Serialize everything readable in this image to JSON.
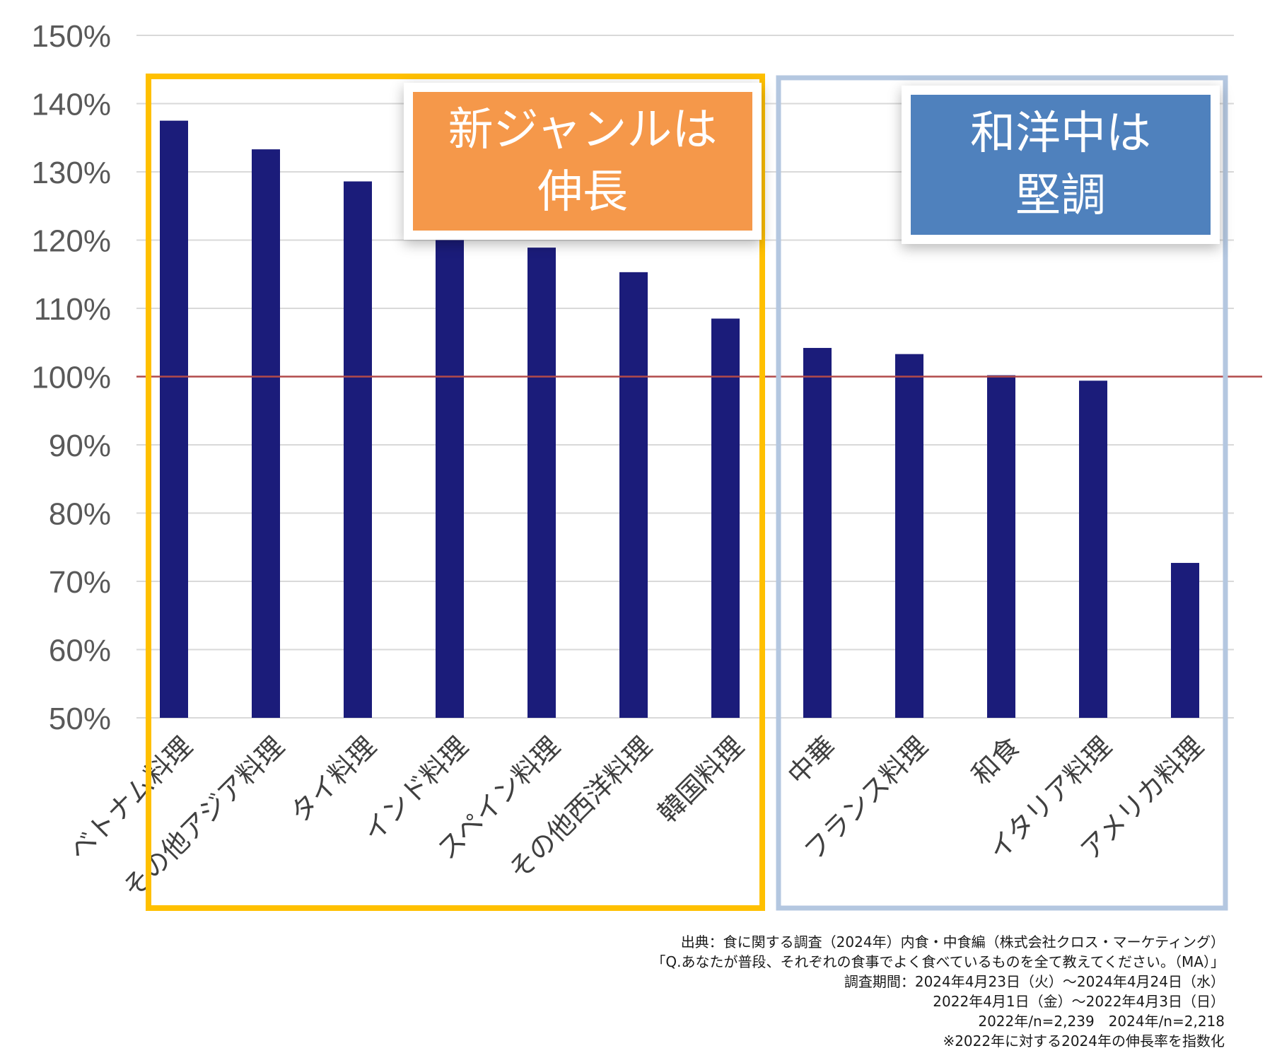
{
  "chart_data": {
    "type": "bar",
    "categories": [
      "ベトナム料理",
      "その他アジア料理",
      "タイ料理",
      "インド料理",
      "スペイン料理",
      "その他西洋料理",
      "韓国料理",
      "中華",
      "フランス料理",
      "和食",
      "イタリア料理",
      "アメリカ料理"
    ],
    "values": [
      137.5,
      133.3,
      128.6,
      120.0,
      118.9,
      115.3,
      108.5,
      104.2,
      103.3,
      100.2,
      99.4,
      72.7
    ],
    "yticks": [
      "50%",
      "60%",
      "70%",
      "80%",
      "90%",
      "100%",
      "110%",
      "120%",
      "130%",
      "140%",
      "150%"
    ],
    "ylim": [
      50,
      150
    ],
    "reference_line": 100,
    "grid": true,
    "groups": [
      {
        "label": "新ジャンルは\n伸長",
        "first": 0,
        "last": 6,
        "border_color": "#FFC000",
        "label_bg": "#F5984A"
      },
      {
        "label": "和洋中は\n堅調",
        "first": 7,
        "last": 11,
        "border_color": "#B4C7E0",
        "label_bg": "#4F81BD"
      }
    ],
    "colors": {
      "bar": "#1B1C7A",
      "reference_line": "#B24A4A",
      "grid": "#D9D9D9"
    }
  },
  "source_notes": [
    "出典：食に関する調査（2024年）内食・中食編（株式会社クロス・マーケティング）",
    "「Q.あなたが普段、それぞれの食事でよく食べているものを全て教えてください。（MA）」",
    "調査期間：2024年4月23日（火）～2024年4月24日（水）",
    "2022年4月1日（金）～2022年4月3日（日）",
    "2022年/n=2,239　2024年/n=2,218",
    "※2022年に対する2024年の伸長率を指数化"
  ]
}
